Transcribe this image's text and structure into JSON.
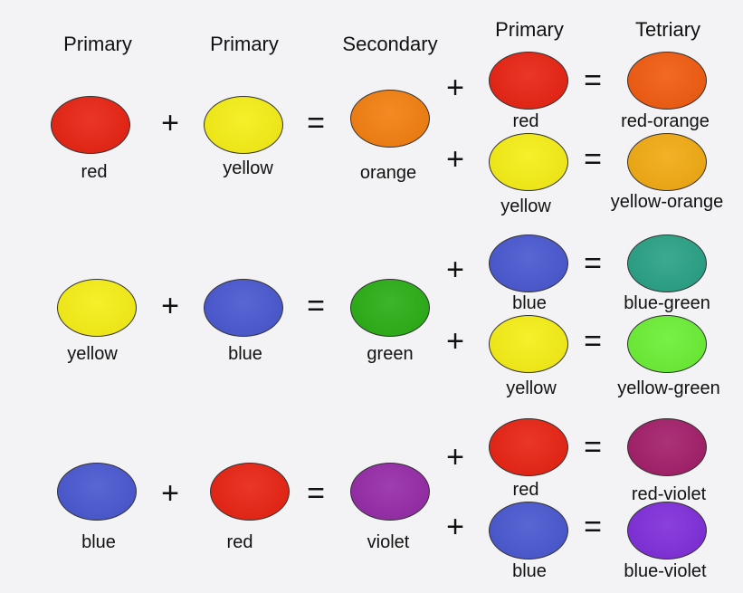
{
  "headers": {
    "col1": "Primary",
    "col2": "Primary",
    "col3": "Secondary",
    "col4": "Primary",
    "col5": "Tetriary"
  },
  "operators": {
    "plus": "+",
    "equals": "="
  },
  "colors": {
    "red": "#e8200f",
    "yellow": "#f5ee12",
    "blue": "#4655cf",
    "orange": "#f37d0c",
    "green": "#27ad12",
    "violet": "#9428a6",
    "red_orange": "#f1590c",
    "yellow_orange": "#f1a90f",
    "blue_green": "#26a083",
    "yellow_green": "#69ef32",
    "red_violet": "#a21b67",
    "blue_violet": "#7d2bd9"
  },
  "rows": [
    {
      "a": "red",
      "b": "yellow",
      "secondary": "orange",
      "t1_primary": "red",
      "t1_result": "red-orange",
      "t2_primary": "yellow",
      "t2_result": "yellow-orange"
    },
    {
      "a": "yellow",
      "b": "blue",
      "secondary": "green",
      "t1_primary": "blue",
      "t1_result": "blue-green",
      "t2_primary": "yellow",
      "t2_result": "yellow-green"
    },
    {
      "a": "blue",
      "b": "red",
      "secondary": "violet",
      "t1_primary": "red",
      "t1_result": "red-violet",
      "t2_primary": "blue",
      "t2_result": "blue-violet"
    }
  ]
}
